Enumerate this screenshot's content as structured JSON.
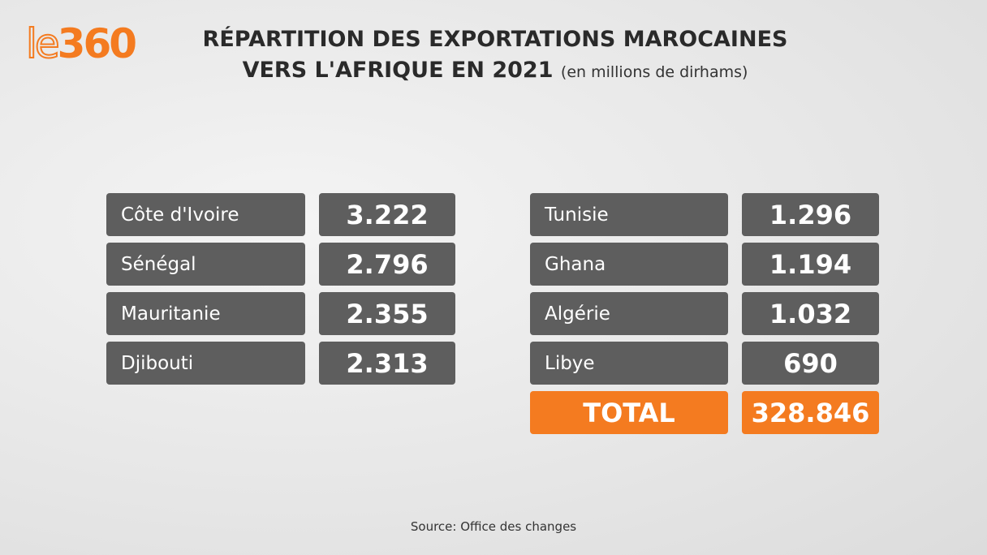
{
  "logo": {
    "part1": "le",
    "part2": "360"
  },
  "title": {
    "line1": "RÉPARTITION DES EXPORTATIONS MAROCAINES",
    "line2": "VERS L'AFRIQUE EN 2021",
    "unit": "(en millions de dirhams)"
  },
  "source": "Source: Office des changes",
  "colors": {
    "accent": "#f47b20",
    "box": "#5e5e5e"
  },
  "chart_data": {
    "type": "table",
    "title": "RÉPARTITION DES EXPORTATIONS MAROCAINES VERS L'AFRIQUE EN 2021",
    "unit": "(en millions de dirhams)",
    "rows": [
      {
        "country": "Côte d'Ivoire",
        "value": "3.222"
      },
      {
        "country": "Sénégal",
        "value": "2.796"
      },
      {
        "country": "Mauritanie",
        "value": "2.355"
      },
      {
        "country": "Djibouti",
        "value": "2.313"
      },
      {
        "country": "Tunisie",
        "value": "1.296"
      },
      {
        "country": "Ghana",
        "value": "1.194"
      },
      {
        "country": "Algérie",
        "value": "1.032"
      },
      {
        "country": "Libye",
        "value": "690"
      }
    ],
    "total": {
      "label": "TOTAL",
      "value": "328.846"
    }
  }
}
